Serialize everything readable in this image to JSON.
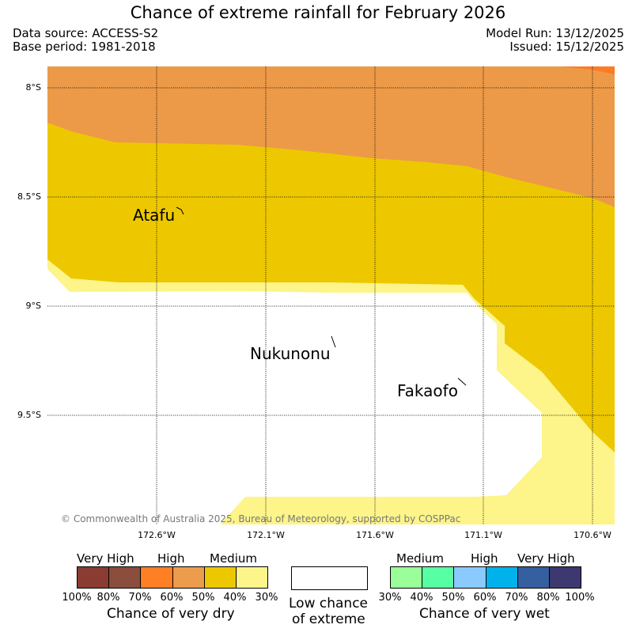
{
  "title": "Chance of extreme rainfall for February 2026",
  "meta": {
    "data_source": "Data source: ACCESS-S2",
    "base_period": "Base period: 1981-2018",
    "model_run": "Model Run: 13/12/2025",
    "issued": "Issued: 15/12/2025"
  },
  "map": {
    "lat_labels": [
      "8°S",
      "8.5°S",
      "9°S",
      "9.5°S"
    ],
    "lon_labels": [
      "172.6°W",
      "172.1°W",
      "171.6°W",
      "171.1°W",
      "170.6°W"
    ],
    "places": [
      "Atafu",
      "Nukunonu",
      "Fakaofo"
    ],
    "copyright": "© Commonwealth of Australia 2025, Bureau of Meteorology, supported by COSPPac",
    "colors": {
      "very_high_dry_red": "#ff7a24",
      "high_dry": "#ec9a48",
      "medium_dry": "#edc800",
      "low_medium_dry": "#fdf48a",
      "low_chance": "#ffffff"
    }
  },
  "legend": {
    "dry": {
      "headers": [
        "Very High",
        "High",
        "Medium"
      ],
      "colors": [
        "#8b3c32",
        "#8b4e3c",
        "#ff7f24",
        "#ec9c4c",
        "#edc800",
        "#fef58a"
      ],
      "ticks": [
        "100%",
        "80%",
        "70%",
        "60%",
        "50%",
        "40%",
        "30%"
      ],
      "title": "Chance of very dry"
    },
    "low": {
      "title_line1": "Low chance",
      "title_line2": "of extreme"
    },
    "wet": {
      "headers": [
        "Medium",
        "High",
        "Very High"
      ],
      "colors": [
        "#9aff98",
        "#57ffa2",
        "#8acaff",
        "#00b2ec",
        "#355f9e",
        "#3d3870"
      ],
      "ticks": [
        "30%",
        "40%",
        "50%",
        "60%",
        "70%",
        "80%",
        "100%"
      ],
      "title": "Chance of very wet"
    }
  }
}
